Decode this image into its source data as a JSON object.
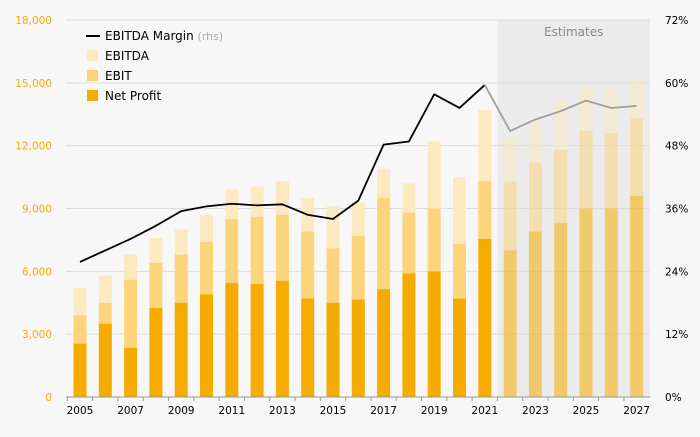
{
  "chart_data": {
    "type": "bar",
    "stacked_bars_with_line_overlay": true,
    "years": [
      2005,
      2006,
      2007,
      2008,
      2009,
      2010,
      2011,
      2012,
      2013,
      2014,
      2015,
      2016,
      2017,
      2018,
      2019,
      2020,
      2021,
      2022,
      2023,
      2024,
      2025,
      2026,
      2027
    ],
    "x_tick_labels": [
      "2005",
      "2007",
      "2009",
      "2011",
      "2013",
      "2015",
      "2017",
      "2019",
      "2021",
      "2023",
      "2025",
      "2027"
    ],
    "y_left": {
      "ylim": [
        0,
        18000
      ],
      "ticks": [
        0,
        3000,
        6000,
        9000,
        12000,
        15000,
        18000
      ],
      "tick_labels": [
        "0",
        "3,000",
        "6,000",
        "9,000",
        "12,000",
        "15,000",
        "18,000"
      ]
    },
    "y_right": {
      "ylim": [
        0,
        72
      ],
      "ticks": [
        0,
        12,
        24,
        36,
        48,
        60,
        72
      ],
      "tick_labels": [
        "0%",
        "12%",
        "24%",
        "36%",
        "48%",
        "60%",
        "72%"
      ]
    },
    "series": [
      {
        "name": "EBITDA Margin",
        "name_suffix": "(rhs)",
        "kind": "line",
        "axis": "right",
        "values": [
          25.8,
          28.0,
          30.2,
          32.7,
          35.5,
          36.4,
          36.9,
          36.6,
          36.8,
          34.8,
          34.0,
          37.5,
          48.2,
          48.8,
          57.8,
          55.2,
          59.6,
          50.8,
          53.0,
          54.6,
          56.6,
          55.2,
          55.6
        ]
      },
      {
        "name": "EBITDA",
        "kind": "bar",
        "axis": "left",
        "values": [
          5200,
          5800,
          6800,
          7600,
          8000,
          8700,
          9900,
          10050,
          10300,
          9500,
          9100,
          9300,
          10900,
          10200,
          12200,
          10500,
          13700,
          12300,
          13200,
          14200,
          14800,
          14700,
          15200
        ]
      },
      {
        "name": "EBIT",
        "kind": "bar",
        "axis": "left",
        "values": [
          3900,
          4500,
          5600,
          6400,
          6800,
          7400,
          8500,
          8600,
          8700,
          7900,
          7100,
          7700,
          9500,
          8800,
          9000,
          7300,
          10300,
          10300,
          11200,
          11800,
          12700,
          12600,
          13300
        ]
      },
      {
        "name": "Net Profit",
        "kind": "bar",
        "axis": "left",
        "values": [
          2550,
          3500,
          2350,
          4250,
          4500,
          4900,
          5450,
          5400,
          5550,
          4700,
          4500,
          4650,
          5150,
          5900,
          6000,
          4700,
          7550,
          7000,
          7900,
          8300,
          9000,
          9000,
          9600
        ]
      }
    ],
    "estimates": {
      "label": "Estimates",
      "from_year": 2022
    },
    "legend_placement": "top-left",
    "grid": "horizontal",
    "title": "",
    "xlabel": "",
    "ylabel": ""
  },
  "colors": {
    "ebitda": "#fce9c0",
    "ebit": "#fcd47b",
    "net_profit": "#f5ab00",
    "margin_line": "#000000",
    "margin_line_estimate": "#a0a0a0",
    "axis_text": "#000000",
    "right_axis_text": "#000000",
    "left_axis_text": "#f5ab00",
    "estimates_band": "#ebebeb",
    "estimates_text": "#888888",
    "grid": "#dddddd"
  }
}
